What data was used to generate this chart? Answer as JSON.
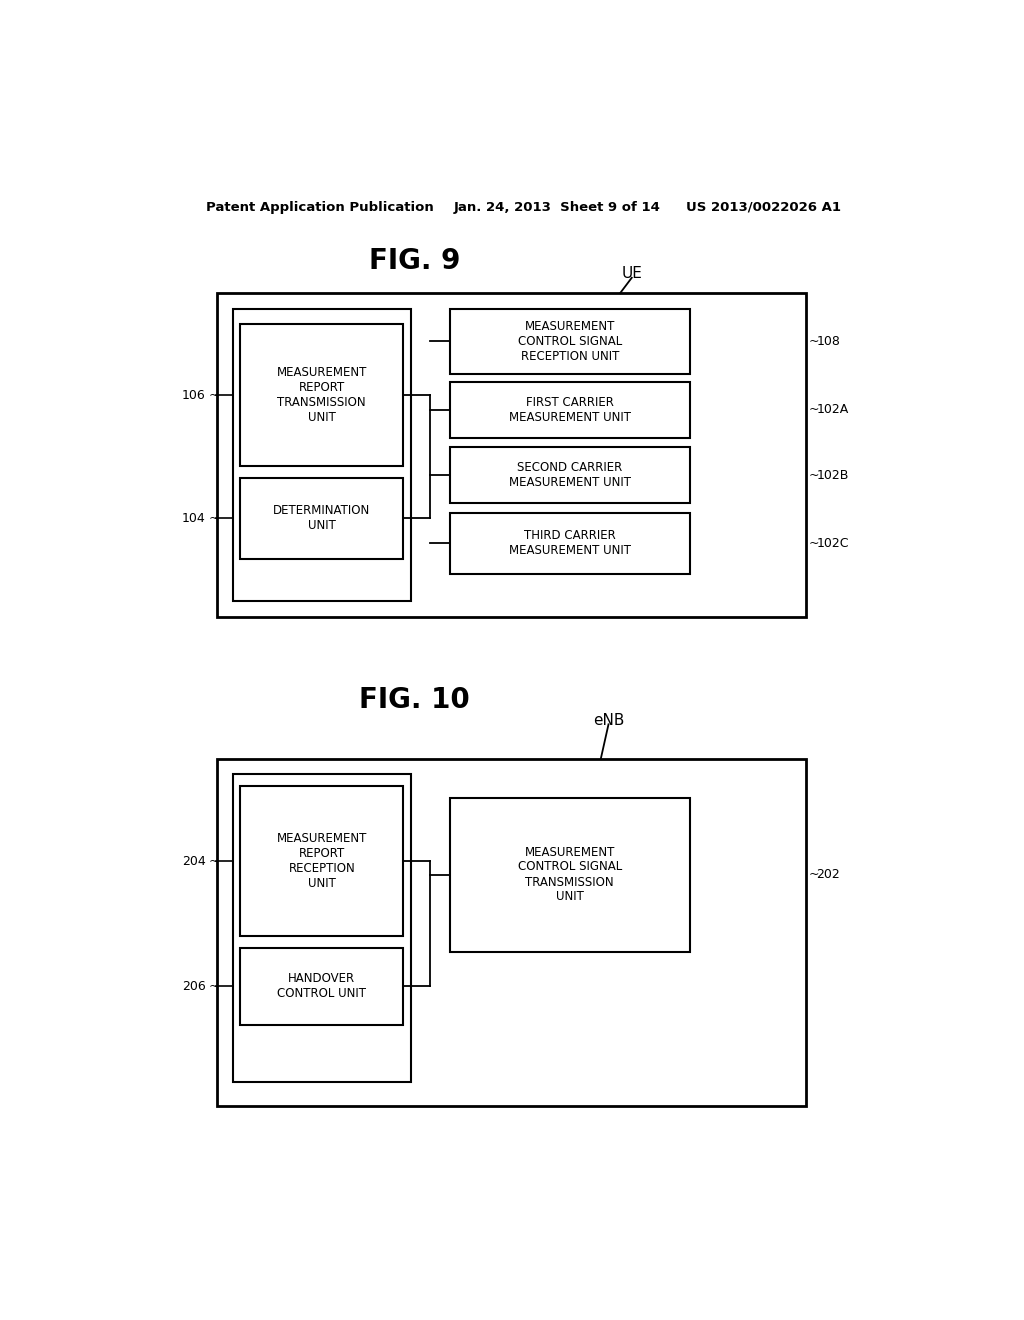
{
  "background_color": "#ffffff",
  "header_left": "Patent Application Publication",
  "header_mid": "Jan. 24, 2013  Sheet 9 of 14",
  "header_right": "US 2013/0022026 A1",
  "fig9": {
    "title": "FIG. 9",
    "label_ue": "UE",
    "left_top_label": "MEASUREMENT\nREPORT\nTRANSMISSION\nUNIT",
    "left_top_ref": "106",
    "left_bot_label": "DETERMINATION\nUNIT",
    "left_bot_ref": "104",
    "right_boxes": [
      {
        "label": "MEASUREMENT\nCONTROL SIGNAL\nRECEPTION UNIT",
        "ref": "108"
      },
      {
        "label": "FIRST CARRIER\nMEASUREMENT UNIT",
        "ref": "102A"
      },
      {
        "label": "SECOND CARRIER\nMEASUREMENT UNIT",
        "ref": "102B"
      },
      {
        "label": "THIRD CARRIER\nMEASUREMENT UNIT",
        "ref": "102C"
      }
    ]
  },
  "fig10": {
    "title": "FIG. 10",
    "label_enb": "eNB",
    "left_top_label": "MEASUREMENT\nREPORT\nRECEPTION\nUNIT",
    "left_top_ref": "204",
    "left_bot_label": "HANDOVER\nCONTROL UNIT",
    "left_bot_ref": "206",
    "right_box_label": "MEASUREMENT\nCONTROL SIGNAL\nTRANSMISSION\nUNIT",
    "right_box_ref": "202"
  }
}
